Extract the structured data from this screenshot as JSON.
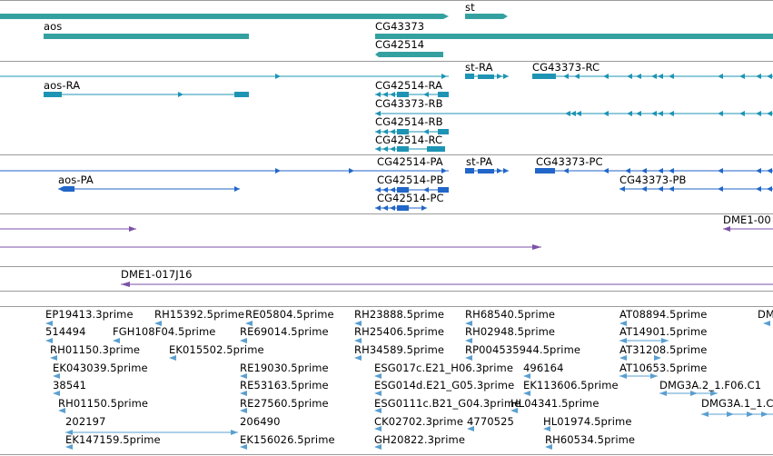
{
  "colors": {
    "gene": "#35a0a0",
    "gene_dark": "#1f8080",
    "transcript": "#1e94b4",
    "protein": "#2166c8",
    "clone": "#7b52a8",
    "est": "#5a9fd0",
    "separator": "#9a9a9a"
  },
  "gene_track": {
    "labels": [
      "st",
      "aos",
      "CG43373",
      "CG42514"
    ]
  },
  "transcript_track": {
    "labels": [
      "st-RA",
      "CG43373-RC",
      "aos-RA",
      "CG42514-RA",
      "CG43373-RB",
      "CG42514-RB",
      "CG42514-RC"
    ]
  },
  "protein_track": {
    "labels": [
      "CG42514-PA",
      "st-PA",
      "CG43373-PC",
      "aos-PA",
      "CG42514-PB",
      "CG43373-PB",
      "CG42514-PC"
    ]
  },
  "clone_track": {
    "labels": [
      "DME1-00",
      "DME1-017J16"
    ]
  },
  "est_track": {
    "labels": [
      "EP19413.3prime",
      "RH15392.5prime",
      "RE05804.5prime",
      "RH23888.5prime",
      "RH68540.5prime",
      "AT08894.5prime",
      "DM",
      "514494",
      "FGH108F04.5prime",
      "RE69014.5prime",
      "RH25406.5prime",
      "RH02948.5prime",
      "AT14901.5prime",
      "RH01150.3prime",
      "EK015502.5prime",
      "RH34589.5prime",
      "RP004535944.5prime",
      "AT31208.5prime",
      "EK043039.5prime",
      "RE19030.5prime",
      "ESG017c.E21_H06.3prime",
      "496164",
      "AT10653.5prime",
      "38541",
      "RE53163.5prime",
      "ESG014d.E21_G05.3prime",
      "EK113606.5prime",
      "DMG3A.2_1.F06.C1",
      "RH01150.5prime",
      "RE27560.5prime",
      "ESG0111c.B21_G04.3prime",
      "HL04341.5prime",
      "DMG3A.1_1.C",
      "202197",
      "206490",
      "CK02702.3prime",
      "4770525",
      "HL01974.5prime",
      "EK147159.5prime",
      "EK156026.5prime",
      "GH20822.3prime",
      "RH60534.5prime"
    ]
  }
}
